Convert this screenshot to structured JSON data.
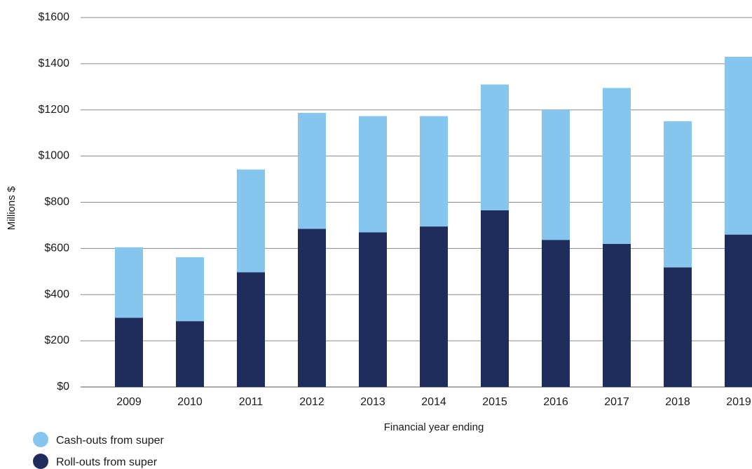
{
  "chart_data": {
    "type": "bar",
    "stacked": true,
    "categories": [
      "2009",
      "2010",
      "2011",
      "2012",
      "2013",
      "2014",
      "2015",
      "2016",
      "2017",
      "2018",
      "2019"
    ],
    "series": [
      {
        "name": "Roll-outs from super",
        "color": "#1f2d5c",
        "values": [
          300,
          285,
          497,
          685,
          670,
          695,
          765,
          637,
          620,
          518,
          660
        ]
      },
      {
        "name": "Cash-outs from super",
        "color": "#86c5ee",
        "values": [
          305,
          277,
          445,
          502,
          503,
          478,
          545,
          563,
          675,
          633,
          770
        ]
      }
    ],
    "xlabel": "Financial year ending",
    "ylabel": "Millions $",
    "ylim": [
      0,
      1600
    ],
    "yticks": [
      0,
      200,
      400,
      600,
      800,
      1000,
      1200,
      1400,
      1600
    ],
    "ytick_labels": [
      "$0",
      "$200",
      "$400",
      "$600",
      "$800",
      "$1000",
      "$1200",
      "$1400",
      "$1600"
    ],
    "grid": true,
    "legend_position": "bottom-left",
    "legend": [
      {
        "label": "Cash-outs from super",
        "color": "#86c5ee"
      },
      {
        "label": "Roll-outs from super",
        "color": "#1f2d5c"
      }
    ]
  }
}
